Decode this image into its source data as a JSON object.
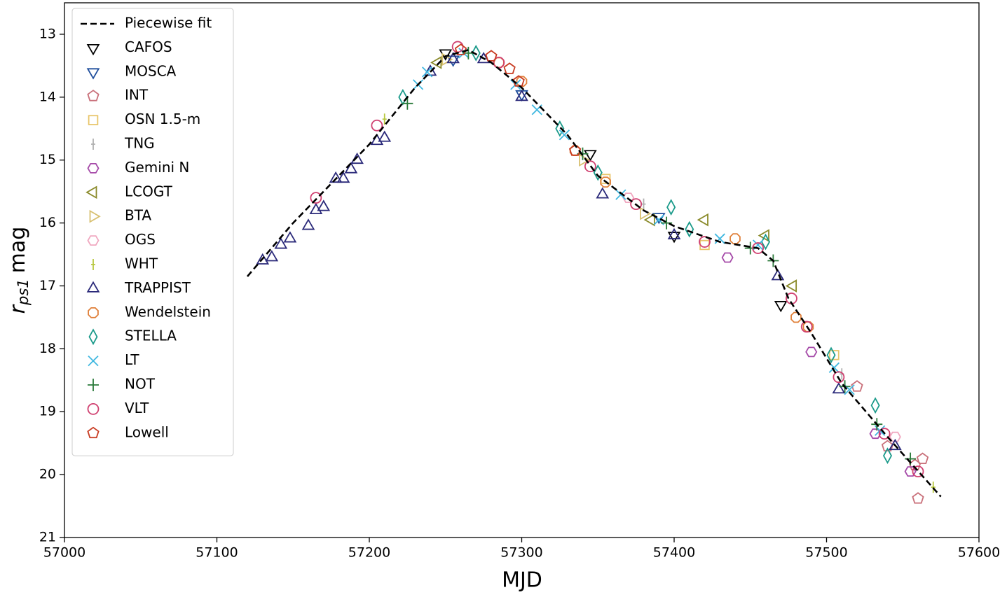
{
  "chart_data": {
    "type": "scatter",
    "xlabel": "MJD",
    "ylabel": "r",
    "ylabel_sub": "ps1",
    "ylabel_rest": "mag",
    "xlim": [
      57000,
      57600
    ],
    "xticks": [
      57000,
      57100,
      57200,
      57300,
      57400,
      57500,
      57600
    ],
    "ylim": [
      21,
      12.5
    ],
    "yticks": [
      13,
      14,
      15,
      16,
      17,
      18,
      19,
      20,
      21
    ],
    "legend": "upper left",
    "fit": {
      "name": "Piecewise fit",
      "color": "#000000",
      "x": [
        57120,
        57150,
        57200,
        57230,
        57250,
        57265,
        57280,
        57300,
        57330,
        57350,
        57380,
        57400,
        57430,
        57455,
        57465,
        57475,
        57490,
        57510,
        57540,
        57575
      ],
      "values": [
        16.85,
        16.0,
        14.75,
        13.85,
        13.35,
        13.25,
        13.45,
        13.85,
        14.6,
        15.25,
        15.8,
        16.05,
        16.3,
        16.4,
        16.6,
        17.2,
        17.75,
        18.55,
        19.4,
        20.35
      ]
    },
    "series": [
      {
        "name": "CAFOS",
        "color": "#000000",
        "marker": "tri-down",
        "x": [
          57250,
          57345,
          57400,
          57470
        ],
        "values": [
          13.3,
          14.9,
          16.2,
          17.3
        ]
      },
      {
        "name": "MOSCA",
        "color": "#1f4e9c",
        "marker": "tri-down",
        "x": [
          57255,
          57300,
          57390
        ],
        "values": [
          13.4,
          13.95,
          15.9
        ]
      },
      {
        "name": "INT",
        "color": "#c9707a",
        "marker": "pentagon",
        "x": [
          57520,
          57540,
          57558,
          57560,
          57563
        ],
        "values": [
          18.6,
          19.55,
          19.85,
          20.38,
          19.75
        ]
      },
      {
        "name": "OSN 1.5-m",
        "color": "#e8c56a",
        "marker": "square",
        "x": [
          57355,
          57420,
          57505
        ],
        "values": [
          15.3,
          16.35,
          18.1
        ]
      },
      {
        "name": "TNG",
        "color": "#b0b0b0",
        "marker": "tick",
        "x": [
          57380,
          57510
        ],
        "values": [
          15.7,
          18.4
        ]
      },
      {
        "name": "Gemini N",
        "color": "#a54aa8",
        "marker": "hexagon",
        "x": [
          57435,
          57490,
          57532,
          57555
        ],
        "values": [
          16.55,
          18.05,
          19.35,
          19.95
        ]
      },
      {
        "name": "LCOGT",
        "color": "#8a8a2a",
        "marker": "tri-left",
        "x": [
          57245,
          57385,
          57420,
          57460,
          57478
        ],
        "values": [
          13.45,
          15.95,
          15.95,
          16.2,
          17.0
        ]
      },
      {
        "name": "BTA",
        "color": "#d8c070",
        "marker": "tri-right",
        "x": [
          57250,
          57340,
          57380
        ],
        "values": [
          13.4,
          15.0,
          15.85
        ]
      },
      {
        "name": "OGS",
        "color": "#f0a8c0",
        "marker": "hexagon",
        "x": [
          57370,
          57545
        ],
        "values": [
          15.6,
          19.4
        ]
      },
      {
        "name": "WHT",
        "color": "#b8c840",
        "marker": "tick",
        "x": [
          57210,
          57570
        ],
        "values": [
          14.35,
          20.2
        ]
      },
      {
        "name": "TRAPPIST",
        "color": "#2b2a7a",
        "marker": "tri-up",
        "x": [
          57130,
          57136,
          57142,
          57148,
          57160,
          57165,
          57170,
          57178,
          57183,
          57188,
          57192,
          57205,
          57210,
          57240,
          57255,
          57275,
          57300,
          57353,
          57400,
          57468,
          57508,
          57545
        ],
        "values": [
          16.6,
          16.55,
          16.35,
          16.25,
          16.05,
          15.8,
          15.75,
          15.3,
          15.3,
          15.15,
          15.0,
          14.7,
          14.65,
          13.6,
          13.4,
          13.4,
          14.0,
          15.55,
          16.2,
          16.85,
          18.65,
          19.55
        ]
      },
      {
        "name": "Wendelstein",
        "color": "#e0803a",
        "marker": "octagon",
        "x": [
          57285,
          57300,
          57335,
          57355,
          57440,
          57480,
          57488
        ],
        "values": [
          13.45,
          13.75,
          14.85,
          15.35,
          16.25,
          17.5,
          17.65
        ]
      },
      {
        "name": "STELLA",
        "color": "#1a9a8a",
        "marker": "diamond",
        "x": [
          57222,
          57270,
          57325,
          57350,
          57398,
          57410,
          57460,
          57503,
          57532,
          57540
        ],
        "values": [
          14.0,
          13.3,
          14.5,
          15.2,
          15.75,
          16.1,
          16.3,
          18.1,
          18.9,
          19.7
        ]
      },
      {
        "name": "LT",
        "color": "#40b8e0",
        "marker": "x",
        "x": [
          57232,
          57238,
          57262,
          57296,
          57310,
          57328,
          57365,
          57390,
          57430,
          57455,
          57505,
          57515,
          57535
        ],
        "values": [
          13.8,
          13.6,
          13.3,
          13.8,
          14.2,
          14.6,
          15.55,
          15.95,
          16.25,
          16.35,
          18.3,
          18.65,
          19.3
        ]
      },
      {
        "name": "NOT",
        "color": "#2a7a3a",
        "marker": "plus",
        "x": [
          57225,
          57265,
          57340,
          57395,
          57450,
          57465,
          57512,
          57533,
          57555
        ],
        "values": [
          14.1,
          13.3,
          14.9,
          16.0,
          16.4,
          16.6,
          18.6,
          19.2,
          19.75
        ]
      },
      {
        "name": "VLT",
        "color": "#d04070",
        "marker": "circle",
        "x": [
          57165,
          57205,
          57258,
          57285,
          57345,
          57375,
          57420,
          57455,
          57477,
          57487,
          57508,
          57538,
          57560
        ],
        "values": [
          15.6,
          14.45,
          13.2,
          13.45,
          15.1,
          15.7,
          16.3,
          16.4,
          17.2,
          17.65,
          18.45,
          19.35,
          19.95
        ]
      },
      {
        "name": "Lowell",
        "color": "#c83a20",
        "marker": "pentagon",
        "x": [
          57260,
          57280,
          57292,
          57298,
          57335
        ],
        "values": [
          13.25,
          13.35,
          13.55,
          13.75,
          14.85
        ]
      }
    ]
  }
}
